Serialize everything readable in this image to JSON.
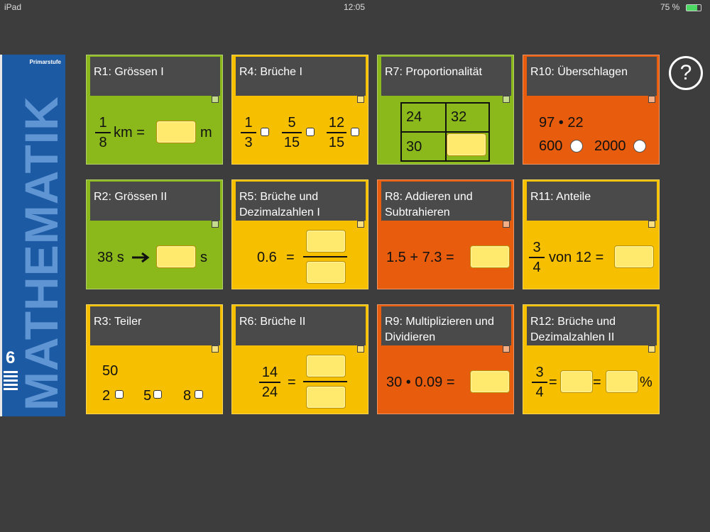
{
  "status_bar": {
    "device": "iPad",
    "time": "12:05",
    "battery": "75 %"
  },
  "sidebar": {
    "level": "Primarstufe",
    "subject": "MATHEMATIK",
    "grade": "6"
  },
  "help_button": {
    "label": "?"
  },
  "tiles": [
    {
      "title": "R1: Grössen I",
      "color": "#8bb91b",
      "items": [
        "1",
        "8",
        "km =",
        "m"
      ]
    },
    {
      "title": "R4: Brüche I",
      "color": "#f6c000",
      "items": [
        "1",
        "3",
        "5",
        "15",
        "12",
        "15"
      ]
    },
    {
      "title": "R7: Proportionalität",
      "color": "#8bb91b",
      "items": [
        "24",
        "32",
        "30"
      ]
    },
    {
      "title": "R10: Überschlagen",
      "color": "#e75c0d",
      "items": [
        "97 • 22",
        "600",
        "2000"
      ]
    },
    {
      "title": "R2: Grössen II",
      "color": "#8bb91b",
      "items": [
        "38 s",
        "s"
      ]
    },
    {
      "title": "R5: Brüche und Dezimalzahlen I",
      "color": "#f6c000",
      "items": [
        "0.6",
        "="
      ]
    },
    {
      "title": "R8: Addieren und Subtrahieren",
      "color": "#e75c0d",
      "items": [
        "1.5 + 7.3 ="
      ]
    },
    {
      "title": "R11: Anteile",
      "color": "#f6c000",
      "items": [
        "3",
        "4",
        "von 12 ="
      ]
    },
    {
      "title": "R3: Teiler",
      "color": "#f6c000",
      "items": [
        "50",
        "2",
        "5",
        "8"
      ]
    },
    {
      "title": "R6: Brüche II",
      "color": "#f6c000",
      "items": [
        "14",
        "24",
        "="
      ]
    },
    {
      "title": "R9: Multiplizieren und Dividieren",
      "color": "#e75c0d",
      "items": [
        "30 • 0.09 ="
      ]
    },
    {
      "title": "R12: Brüche und Dezimalzahlen II",
      "color": "#f6c000",
      "items": [
        "3",
        "4",
        "=",
        "=",
        "%"
      ]
    }
  ]
}
